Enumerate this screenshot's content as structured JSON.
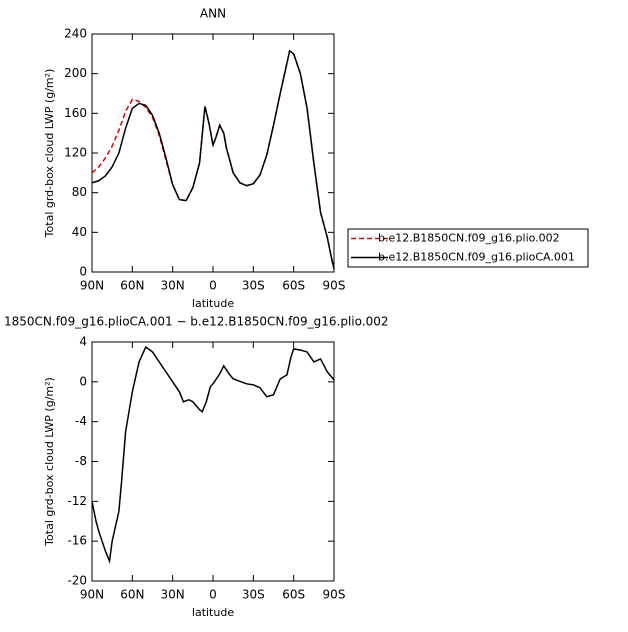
{
  "chart_data": [
    {
      "type": "line",
      "title": "ANN",
      "ylabel": "Total grd-box cloud LWP (g/m²)",
      "xlabel": "latitude",
      "x": [
        90,
        85,
        80,
        75,
        70,
        65,
        60,
        55,
        50,
        45,
        40,
        35,
        30,
        25,
        20,
        15,
        10,
        6,
        3,
        0,
        -2,
        -5,
        -8,
        -10,
        -15,
        -20,
        -25,
        -30,
        -35,
        -40,
        -45,
        -50,
        -57,
        -60,
        -65,
        -70,
        -75,
        -80,
        -85,
        -88,
        -90
      ],
      "xlim": [
        90,
        -90
      ],
      "xticks": [
        {
          "value": 90,
          "label": "90N"
        },
        {
          "value": 60,
          "label": "60N"
        },
        {
          "value": 30,
          "label": "30N"
        },
        0,
        {
          "value": -30,
          "label": "30S"
        },
        {
          "value": -60,
          "label": "60S"
        },
        {
          "value": -90,
          "label": "90S"
        }
      ],
      "ylim": [
        0,
        240
      ],
      "yticks": [
        0,
        40,
        80,
        120,
        160,
        200,
        240
      ],
      "legend": "right",
      "series": [
        {
          "name": "b.e12.B1850CN.f09_g16.plio.002",
          "color": "#e00000",
          "dash": true,
          "values": [
            100,
            106,
            115,
            127,
            143,
            162,
            174,
            172,
            166,
            156,
            138,
            113,
            88,
            73,
            72,
            85,
            110,
            167,
            150,
            128,
            135,
            148,
            140,
            125,
            100,
            90,
            87,
            89,
            98,
            118,
            148,
            180,
            223,
            220,
            200,
            165,
            110,
            60,
            35,
            15,
            3
          ]
        },
        {
          "name": "b.e12.B1850CN.f09_g16.plioCA.001",
          "color": "#000000",
          "dash": false,
          "values": [
            90,
            92,
            97,
            106,
            120,
            145,
            165,
            170,
            168,
            158,
            140,
            115,
            88,
            73,
            72,
            85,
            110,
            167,
            150,
            128,
            135,
            148,
            140,
            125,
            100,
            90,
            87,
            89,
            98,
            118,
            148,
            180,
            223,
            220,
            200,
            165,
            110,
            60,
            35,
            15,
            3
          ]
        }
      ]
    },
    {
      "type": "line",
      "title": "1850CN.f09_g16.plioCA.001 − b.e12.B1850CN.f09_g16.plio.002",
      "ylabel": "Total grd-box cloud LWP (g/m²)",
      "xlabel": "latitude",
      "x": [
        90,
        87,
        85,
        80,
        77,
        75,
        70,
        68,
        65,
        60,
        55,
        50,
        45,
        40,
        35,
        30,
        25,
        22,
        18,
        15,
        10,
        8,
        5,
        2,
        0,
        -5,
        -8,
        -12,
        -15,
        -25,
        -30,
        -35,
        -40,
        -45,
        -50,
        -55,
        -58,
        -60,
        -65,
        -70,
        -75,
        -80,
        -85,
        -90
      ],
      "xlim": [
        90,
        -90
      ],
      "xticks": [
        {
          "value": 90,
          "label": "90N"
        },
        {
          "value": 60,
          "label": "60N"
        },
        {
          "value": 30,
          "label": "30N"
        },
        0,
        {
          "value": -30,
          "label": "30S"
        },
        {
          "value": -60,
          "label": "60S"
        },
        {
          "value": -90,
          "label": "90S"
        }
      ],
      "ylim": [
        -20,
        4
      ],
      "yticks": [
        -20,
        -16,
        -12,
        -8,
        -4,
        0,
        4
      ],
      "series": [
        {
          "color": "#000000",
          "dash": false,
          "values": [
            -12,
            -14,
            -15,
            -17,
            -18,
            -16,
            -13,
            -10,
            -5,
            -1,
            2,
            3.5,
            3,
            2,
            1,
            0,
            -1,
            -2,
            -1.8,
            -2,
            -2.8,
            -3,
            -2,
            -0.5,
            -0.2,
            0.8,
            1.6,
            0.8,
            0.3,
            -0.2,
            -0.3,
            -0.6,
            -1.5,
            -1.3,
            0.3,
            0.7,
            2.5,
            3.3,
            3.2,
            3,
            2,
            2.3,
            1,
            0.2
          ]
        }
      ]
    }
  ]
}
